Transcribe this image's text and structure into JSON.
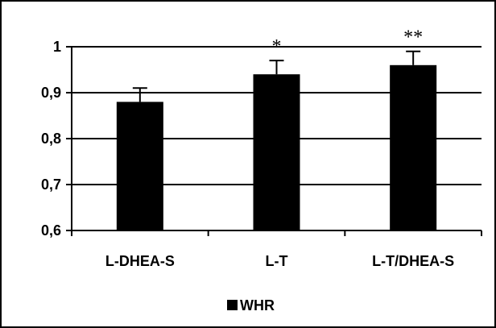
{
  "chart_data": {
    "type": "bar",
    "title": "",
    "xlabel": "",
    "ylabel": "",
    "categories": [
      "L-DHEA-S",
      "L-T",
      "L-T/DHEA-S"
    ],
    "series": [
      {
        "name": "WHR",
        "values": [
          0.88,
          0.94,
          0.96
        ],
        "errors": [
          0.03,
          0.03,
          0.03
        ],
        "color": "#000000"
      }
    ],
    "annotations": [
      "",
      "*",
      "**"
    ],
    "ylim": [
      0.6,
      1.0
    ],
    "yticks": [
      0.6,
      0.7,
      0.8,
      0.9,
      1.0
    ],
    "ytick_labels": [
      "0,6",
      "0,7",
      "0,8",
      "0,9",
      "1"
    ],
    "grid": true,
    "legend_position": "bottom"
  }
}
